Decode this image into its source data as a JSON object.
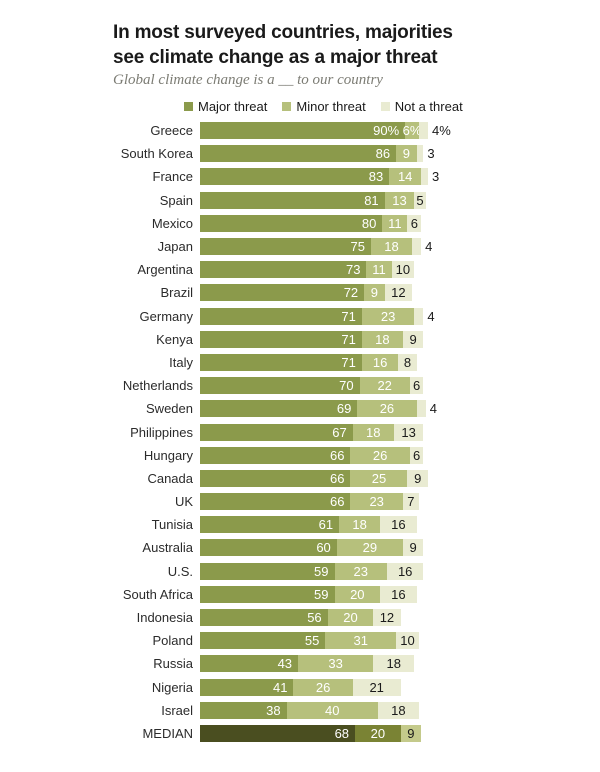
{
  "title": {
    "line1": "In most surveyed countries, majorities",
    "line2": "see climate change as a major threat"
  },
  "subtitle": "Global climate change is a __ to our country",
  "legend": {
    "items": [
      {
        "label": "Major threat",
        "color": "#8b9a4b"
      },
      {
        "label": "Minor threat",
        "color": "#b6c07c"
      },
      {
        "label": "Not a threat",
        "color": "#e9ebd2"
      }
    ]
  },
  "colors": {
    "major": "#8b9a4b",
    "minor": "#b6c07c",
    "not": "#e9ebd2",
    "median_major": "#4a4e20",
    "median_minor": "#7a8334",
    "median_not": "#c4ca8b",
    "bar_value_light": "#ffffff",
    "bar_value_dark": "#1a1a1a",
    "title_text": "#1a1a1a",
    "subtitle_text": "#7c7c74"
  },
  "chart_data": {
    "type": "bar",
    "orientation": "horizontal",
    "stacked": true,
    "unit": "percent",
    "value_range": [
      0,
      100
    ],
    "grid": false,
    "legend_position": "top",
    "series_names": [
      "Major threat",
      "Minor threat",
      "Not a threat"
    ],
    "rows": [
      {
        "country": "Greece",
        "values": [
          90,
          6,
          4
        ],
        "labels": [
          "90%",
          "6%",
          "4%"
        ],
        "is_median": false
      },
      {
        "country": "South Korea",
        "values": [
          86,
          9,
          3
        ],
        "is_median": false
      },
      {
        "country": "France",
        "values": [
          83,
          14,
          3
        ],
        "is_median": false
      },
      {
        "country": "Spain",
        "values": [
          81,
          13,
          5
        ],
        "is_median": false
      },
      {
        "country": "Mexico",
        "values": [
          80,
          11,
          6
        ],
        "is_median": false
      },
      {
        "country": "Japan",
        "values": [
          75,
          18,
          4
        ],
        "is_median": false
      },
      {
        "country": "Argentina",
        "values": [
          73,
          11,
          10
        ],
        "is_median": false
      },
      {
        "country": "Brazil",
        "values": [
          72,
          9,
          12
        ],
        "is_median": false
      },
      {
        "country": "Germany",
        "values": [
          71,
          23,
          4
        ],
        "is_median": false
      },
      {
        "country": "Kenya",
        "values": [
          71,
          18,
          9
        ],
        "is_median": false
      },
      {
        "country": "Italy",
        "values": [
          71,
          16,
          8
        ],
        "is_median": false
      },
      {
        "country": "Netherlands",
        "values": [
          70,
          22,
          6
        ],
        "is_median": false
      },
      {
        "country": "Sweden",
        "values": [
          69,
          26,
          4
        ],
        "is_median": false
      },
      {
        "country": "Philippines",
        "values": [
          67,
          18,
          13
        ],
        "is_median": false
      },
      {
        "country": "Hungary",
        "values": [
          66,
          26,
          6
        ],
        "is_median": false
      },
      {
        "country": "Canada",
        "values": [
          66,
          25,
          9
        ],
        "is_median": false
      },
      {
        "country": "UK",
        "values": [
          66,
          23,
          7
        ],
        "is_median": false
      },
      {
        "country": "Tunisia",
        "values": [
          61,
          18,
          16
        ],
        "is_median": false
      },
      {
        "country": "Australia",
        "values": [
          60,
          29,
          9
        ],
        "is_median": false
      },
      {
        "country": "U.S.",
        "values": [
          59,
          23,
          16
        ],
        "is_median": false
      },
      {
        "country": "South Africa",
        "values": [
          59,
          20,
          16
        ],
        "is_median": false
      },
      {
        "country": "Indonesia",
        "values": [
          56,
          20,
          12
        ],
        "is_median": false
      },
      {
        "country": "Poland",
        "values": [
          55,
          31,
          10
        ],
        "is_median": false
      },
      {
        "country": "Russia",
        "values": [
          43,
          33,
          18
        ],
        "is_median": false
      },
      {
        "country": "Nigeria",
        "values": [
          41,
          26,
          21
        ],
        "is_median": false
      },
      {
        "country": "Israel",
        "values": [
          38,
          40,
          18
        ],
        "is_median": false
      },
      {
        "country": "MEDIAN",
        "values": [
          68,
          20,
          9
        ],
        "is_median": true
      }
    ]
  }
}
